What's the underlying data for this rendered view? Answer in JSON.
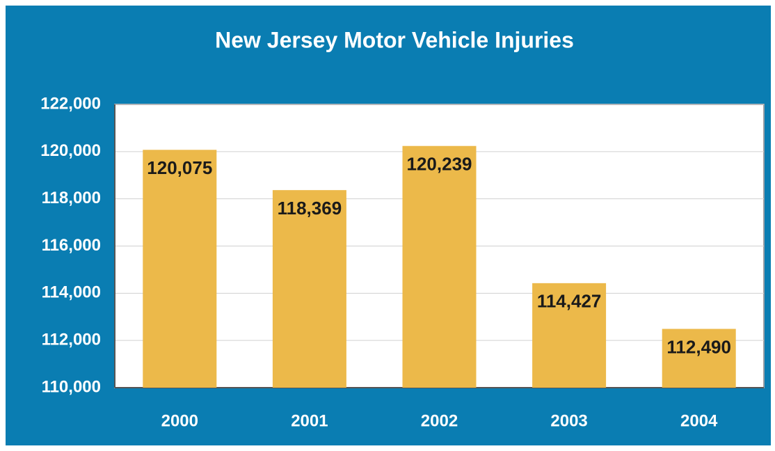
{
  "chart_data": {
    "type": "bar",
    "title": "New Jersey Motor Vehicle Injuries",
    "categories": [
      "2000",
      "2001",
      "2002",
      "2003",
      "2004"
    ],
    "values": [
      120075,
      118369,
      120239,
      114427,
      112490
    ],
    "value_labels": [
      "120,075",
      "118,369",
      "120,239",
      "114,427",
      "112,490"
    ],
    "color": "#ecb94a",
    "ylim": [
      110000,
      122000
    ],
    "yticks": [
      {
        "value": 110000,
        "label": "110,000"
      },
      {
        "value": 112000,
        "label": "112,000"
      },
      {
        "value": 114000,
        "label": "114,000"
      },
      {
        "value": 116000,
        "label": "116,000"
      },
      {
        "value": 118000,
        "label": "118,000"
      },
      {
        "value": 120000,
        "label": "120,000"
      },
      {
        "value": 122000,
        "label": "122,000"
      }
    ],
    "grid": true
  }
}
